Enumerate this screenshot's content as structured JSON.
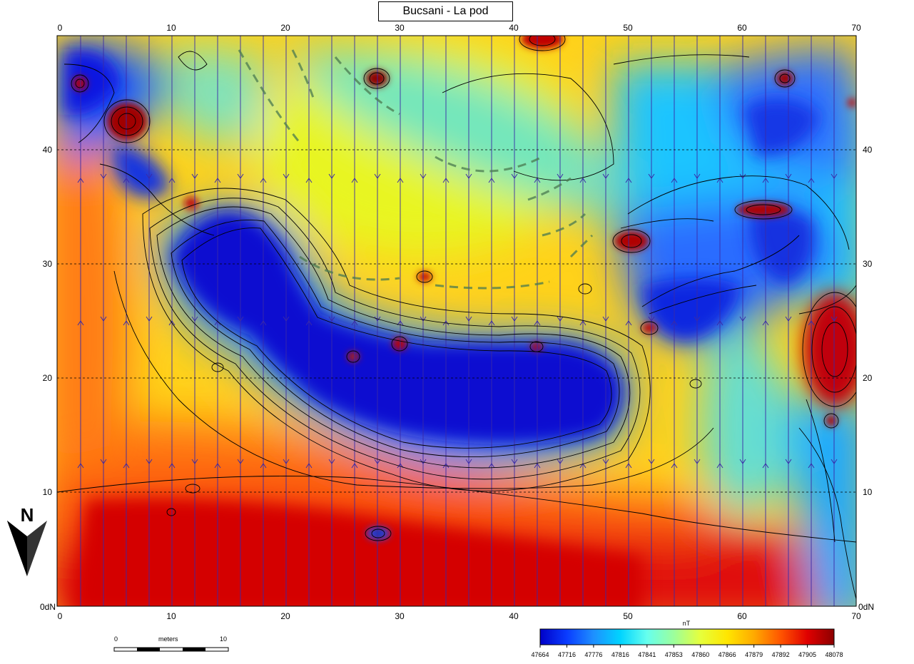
{
  "title": "Bucsani - La pod",
  "axes": {
    "x_ticks": [
      "0",
      "10",
      "20",
      "30",
      "40",
      "50",
      "60",
      "70"
    ],
    "y_ticks": [
      "10",
      "20",
      "30",
      "40"
    ],
    "origin_left": "0dN",
    "origin_right": "0dN"
  },
  "north_label": "N",
  "scale_bar": {
    "start": "0",
    "unit": "meters",
    "end": "10"
  },
  "colorbar": {
    "unit": "nT",
    "labels": [
      "47664",
      "47716",
      "47776",
      "47816",
      "47841",
      "47853",
      "47860",
      "47866",
      "47879",
      "47892",
      "47905",
      "48078"
    ],
    "colors": [
      "#0000c8",
      "#0a3cff",
      "#1e90ff",
      "#00d4ff",
      "#66ffee",
      "#9cff9c",
      "#e6ff3c",
      "#ffe600",
      "#ffaa00",
      "#ff5500",
      "#e00000",
      "#8c0000"
    ]
  }
}
